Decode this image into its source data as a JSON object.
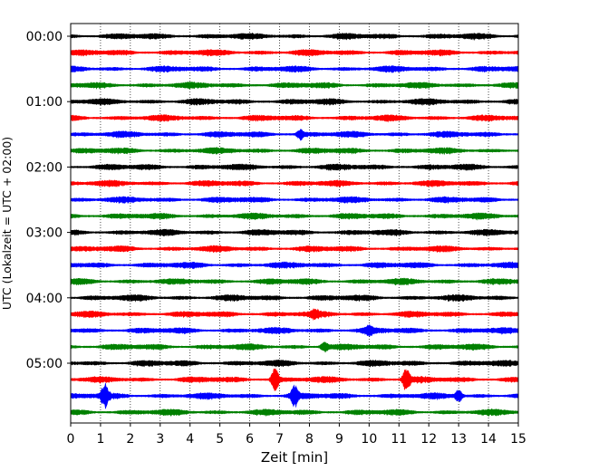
{
  "chart_data": {
    "type": "line",
    "xlabel": "Zeit  [min]",
    "ylabel": "UTC (Lokalzeit = UTC + 02:00)",
    "xlim": [
      0,
      15
    ],
    "x_ticks": [
      0,
      1,
      2,
      3,
      4,
      5,
      6,
      7,
      8,
      9,
      10,
      11,
      12,
      13,
      14,
      15
    ],
    "y_tick_labels": [
      "00:00",
      "01:00",
      "02:00",
      "03:00",
      "04:00",
      "05:00"
    ],
    "y_tick_rows": [
      0,
      4,
      8,
      12,
      16,
      20
    ],
    "minutes_per_row": 15,
    "row_count": 24,
    "color_cycle": [
      "#000000",
      "#ff0000",
      "#0000ff",
      "#008000"
    ],
    "vertical_grid": "dotted",
    "events": [
      {
        "row": 21,
        "minute": 6.85,
        "amplitude": 1.0
      },
      {
        "row": 21,
        "minute": 11.25,
        "amplitude": 1.0
      },
      {
        "row": 22,
        "minute": 1.15,
        "amplitude": 0.95
      },
      {
        "row": 22,
        "minute": 7.5,
        "amplitude": 0.9
      },
      {
        "row": 22,
        "minute": 13.0,
        "amplitude": 0.5
      },
      {
        "row": 6,
        "minute": 7.7,
        "amplitude": 0.35
      },
      {
        "row": 19,
        "minute": 8.5,
        "amplitude": 0.35
      },
      {
        "row": 18,
        "minute": 10.0,
        "amplitude": 0.3
      },
      {
        "row": 17,
        "minute": 8.2,
        "amplitude": 0.25
      }
    ]
  }
}
